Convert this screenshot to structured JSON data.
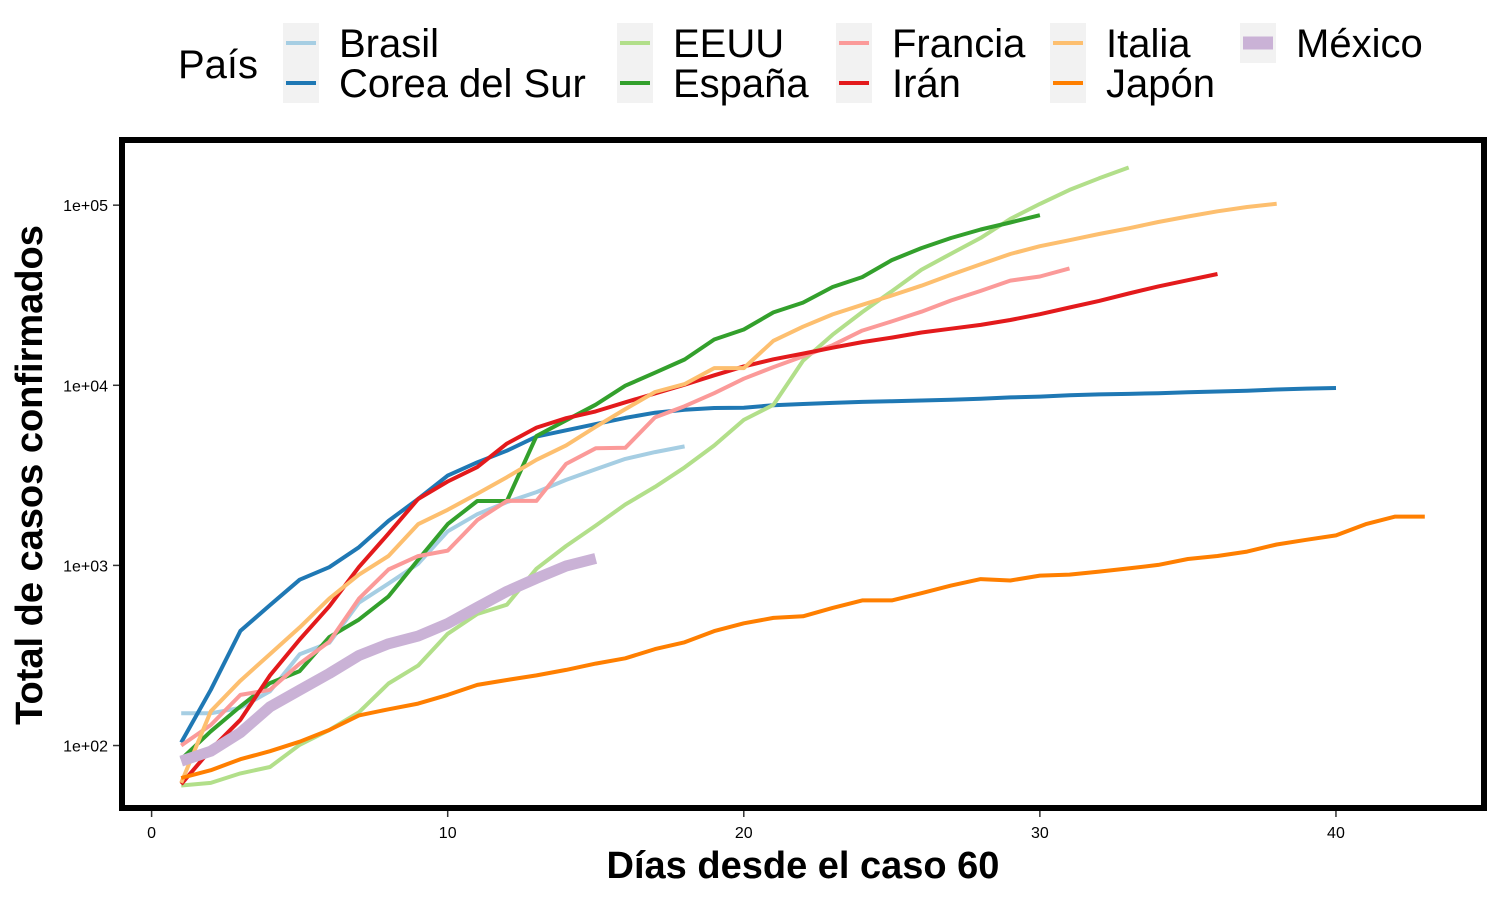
{
  "chart_data": {
    "type": "line",
    "xlabel": "Días desde el caso 60",
    "ylabel": "Total de casos confirmados",
    "xlim": [
      -1,
      45
    ],
    "ylim": [
      45,
      230000
    ],
    "yscale": "log",
    "x_ticks": [
      0,
      10,
      20,
      30,
      40
    ],
    "x_tick_labels": [
      "0",
      "10",
      "20",
      "30",
      "40"
    ],
    "y_ticks": [
      100,
      1000,
      10000,
      100000
    ],
    "y_tick_labels": [
      "1e+02",
      "1e+03",
      "1e+04",
      "1e+05"
    ],
    "grid": false,
    "legend": {
      "title": "País",
      "position": "top"
    },
    "series": [
      {
        "name": "Brasil",
        "color": "#a6cee3",
        "x": [
          1,
          2,
          3,
          4,
          5,
          6,
          7,
          8,
          9,
          10,
          11,
          12,
          13,
          14,
          15,
          16,
          17,
          18
        ],
        "y": [
          151,
          151,
          162,
          200,
          321,
          372,
          621,
          793,
          1021,
          1546,
          1924,
          2247,
          2554,
          2985,
          3417,
          3904,
          4256,
          4579
        ]
      },
      {
        "name": "Corea del Sur",
        "color": "#1f78b4",
        "x": [
          1,
          2,
          3,
          4,
          5,
          6,
          7,
          8,
          9,
          10,
          11,
          12,
          13,
          14,
          15,
          16,
          17,
          18,
          19,
          20,
          21,
          22,
          23,
          24,
          25,
          26,
          27,
          28,
          29,
          30,
          31,
          32,
          33,
          34,
          35,
          36,
          37,
          38,
          39,
          40
        ],
        "y": [
          104,
          204,
          433,
          602,
          833,
          977,
          1261,
          1766,
          2337,
          3150,
          3736,
          4335,
          5186,
          5621,
          6088,
          6593,
          7041,
          7314,
          7478,
          7513,
          7755,
          7869,
          7979,
          8086,
          8162,
          8236,
          8320,
          8413,
          8565,
          8652,
          8799,
          8897,
          8961,
          9037,
          9137,
          9241,
          9332,
          9478,
          9583,
          9661
        ]
      },
      {
        "name": "EEUU",
        "color": "#b2df8a",
        "x": [
          1,
          2,
          3,
          4,
          5,
          6,
          7,
          8,
          9,
          10,
          11,
          12,
          13,
          14,
          15,
          16,
          17,
          18,
          19,
          20,
          21,
          22,
          23,
          24,
          25,
          26,
          27,
          28,
          29,
          30,
          31,
          32,
          33
        ],
        "y": [
          60,
          62,
          70,
          76,
          101,
          122,
          153,
          221,
          278,
          417,
          537,
          605,
          959,
          1281,
          1663,
          2179,
          2727,
          3499,
          4632,
          6421,
          7786,
          13680,
          19101,
          25493,
          33276,
          43847,
          53740,
          65778,
          83836,
          101657,
          121478,
          140886,
          161807
        ]
      },
      {
        "name": "España",
        "color": "#33a02c",
        "x": [
          1,
          2,
          3,
          4,
          5,
          6,
          7,
          8,
          9,
          10,
          11,
          12,
          13,
          14,
          15,
          16,
          17,
          18,
          19,
          20,
          21,
          22,
          23,
          24,
          25,
          26,
          27,
          28,
          29,
          30
        ],
        "y": [
          84,
          120,
          165,
          222,
          259,
          400,
          500,
          673,
          1073,
          1695,
          2277,
          2277,
          5232,
          6391,
          7798,
          9942,
          11748,
          13910,
          17963,
          20410,
          25374,
          28768,
          35136,
          39885,
          49515,
          57786,
          65719,
          73235,
          80110,
          87956
        ]
      },
      {
        "name": "Francia",
        "color": "#fb9a99",
        "x": [
          1,
          2,
          3,
          4,
          5,
          6,
          7,
          8,
          9,
          10,
          11,
          12,
          13,
          14,
          15,
          16,
          17,
          18,
          19,
          20,
          21,
          22,
          23,
          24,
          25,
          26,
          27,
          28,
          29,
          30,
          31
        ],
        "y": [
          100,
          130,
          191,
          204,
          285,
          377,
          653,
          949,
          1126,
          1209,
          1784,
          2281,
          2281,
          3661,
          4469,
          4499,
          6633,
          7652,
          9043,
          10871,
          12612,
          14459,
          16689,
          20123,
          22622,
          25600,
          29551,
          33402,
          38105,
          40174,
          44550
        ]
      },
      {
        "name": "Irán",
        "color": "#e31a1c",
        "x": [
          1,
          2,
          3,
          4,
          5,
          6,
          7,
          8,
          9,
          10,
          11,
          12,
          13,
          14,
          15,
          16,
          17,
          18,
          19,
          20,
          21,
          22,
          23,
          24,
          25,
          26,
          27,
          28,
          29,
          30,
          31,
          32,
          33,
          34,
          35,
          36
        ],
        "y": [
          61,
          95,
          139,
          245,
          388,
          593,
          978,
          1501,
          2336,
          2922,
          3513,
          4747,
          5823,
          6566,
          7161,
          8042,
          9000,
          10075,
          11364,
          12729,
          13938,
          14991,
          16169,
          17361,
          18407,
          19644,
          20610,
          21638,
          23049,
          24811,
          27017,
          29406,
          32332,
          35408,
          38309,
          41495
        ]
      },
      {
        "name": "Italia",
        "color": "#fdbf6f",
        "x": [
          1,
          2,
          3,
          4,
          5,
          6,
          7,
          8,
          9,
          10,
          11,
          12,
          13,
          14,
          15,
          16,
          17,
          18,
          19,
          20,
          21,
          22,
          23,
          24,
          25,
          26,
          27,
          28,
          29,
          30,
          31,
          32,
          33,
          34,
          35,
          36,
          37,
          38
        ],
        "y": [
          62,
          155,
          229,
          322,
          453,
          655,
          888,
          1128,
          1694,
          2036,
          2502,
          3089,
          3858,
          4636,
          5883,
          7375,
          9172,
          10149,
          12462,
          12462,
          17660,
          21157,
          24747,
          27980,
          31506,
          35713,
          41035,
          47021,
          53578,
          59138,
          63927,
          69176,
          74386,
          80589,
          86498,
          92472,
          97689,
          101739
        ]
      },
      {
        "name": "Japón",
        "color": "#ff7f00",
        "x": [
          1,
          2,
          3,
          4,
          5,
          6,
          7,
          8,
          9,
          10,
          11,
          12,
          13,
          14,
          15,
          16,
          17,
          18,
          19,
          20,
          21,
          22,
          23,
          24,
          25,
          26,
          27,
          28,
          29,
          30,
          31,
          32,
          33,
          34,
          35,
          36,
          37,
          38,
          39,
          40,
          41,
          42,
          43
        ],
        "y": [
          66,
          73,
          84,
          93,
          105,
          122,
          147,
          159,
          171,
          191,
          217,
          231,
          245,
          263,
          285,
          305,
          343,
          374,
          432,
          477,
          511,
          522,
          581,
          639,
          639,
          701,
          773,
          839,
          825,
          878,
          889,
          924,
          963,
          1007,
          1086,
          1128,
          1193,
          1307,
          1387,
          1468,
          1693,
          1866,
          1866
        ]
      },
      {
        "name": "México",
        "color": "#cab2d6",
        "x": [
          1,
          2,
          3,
          4,
          5,
          6,
          7,
          8,
          9,
          10,
          11,
          12,
          13,
          14,
          15
        ],
        "y": [
          82,
          93,
          118,
          164,
          203,
          251,
          316,
          367,
          405,
          475,
          585,
          717,
          848,
          993,
          1094
        ]
      }
    ]
  }
}
